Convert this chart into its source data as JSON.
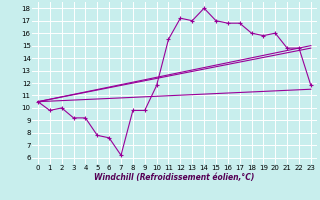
{
  "xlabel": "Windchill (Refroidissement éolien,°C)",
  "bg_color": "#c8eeed",
  "grid_color": "#ffffff",
  "line_color": "#990099",
  "xlim": [
    -0.5,
    23.5
  ],
  "ylim": [
    5.5,
    18.5
  ],
  "xticks": [
    0,
    1,
    2,
    3,
    4,
    5,
    6,
    7,
    8,
    9,
    10,
    11,
    12,
    13,
    14,
    15,
    16,
    17,
    18,
    19,
    20,
    21,
    22,
    23
  ],
  "yticks": [
    6,
    7,
    8,
    9,
    10,
    11,
    12,
    13,
    14,
    15,
    16,
    17,
    18
  ],
  "line1_x": [
    0,
    1,
    2,
    3,
    4,
    5,
    6,
    7,
    8,
    9,
    10,
    11,
    12,
    13,
    14,
    15,
    16,
    17,
    18,
    19,
    20,
    21,
    22,
    23
  ],
  "line1_y": [
    10.5,
    9.8,
    10.0,
    9.2,
    9.2,
    7.8,
    7.6,
    6.2,
    9.8,
    9.8,
    11.8,
    15.5,
    17.2,
    17.0,
    18.0,
    17.0,
    16.8,
    16.8,
    16.0,
    15.8,
    16.0,
    14.8,
    14.8,
    11.8
  ],
  "line2_x": [
    0,
    23
  ],
  "line2_y": [
    10.5,
    14.8
  ],
  "line3_x": [
    0,
    23
  ],
  "line3_y": [
    10.5,
    15.0
  ],
  "line4_x": [
    0,
    23
  ],
  "line4_y": [
    10.5,
    11.5
  ],
  "xlabel_fontsize": 5.5,
  "tick_fontsize": 5,
  "lw": 0.8,
  "marker_size": 2.5
}
